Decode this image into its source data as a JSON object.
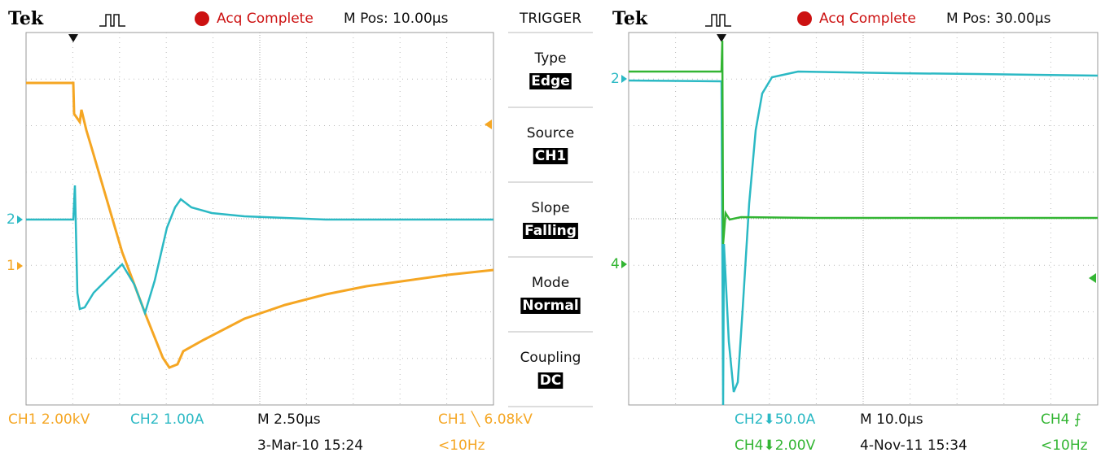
{
  "left_scope": {
    "brand": "Tek",
    "status": "Acq Complete",
    "position": "M Pos: 10.00µs",
    "markers": {
      "ch1": "1",
      "ch2": "2"
    },
    "footer": {
      "ch1_scale": "CH1  2.00kV",
      "ch2_scale": "CH2  1.00A",
      "timebase": "M 2.50µs",
      "trigger": "CH1 ╲ 6.08kV",
      "date": "3-Mar-10 15:24",
      "freq": "<10Hz"
    }
  },
  "trigger_menu": {
    "title": "TRIGGER",
    "items": [
      {
        "label": "Type",
        "value": "Edge"
      },
      {
        "label": "Source",
        "value": "CH1"
      },
      {
        "label": "Slope",
        "value": "Falling"
      },
      {
        "label": "Mode",
        "value": "Normal"
      },
      {
        "label": "Coupling",
        "value": "DC"
      }
    ]
  },
  "right_scope": {
    "brand": "Tek",
    "status": "Acq Complete",
    "position": "M Pos: 30.00µs",
    "markers": {
      "ch2": "2",
      "ch4": "4"
    },
    "footer": {
      "ch2_scale": "CH2⬇50.0A",
      "timebase": "M 10.0µs",
      "trigger": "CH4 ⨍",
      "ch4_scale": "CH4⬇2.00V",
      "date": "4-Nov-11 15:34",
      "freq": "<10Hz"
    }
  }
}
